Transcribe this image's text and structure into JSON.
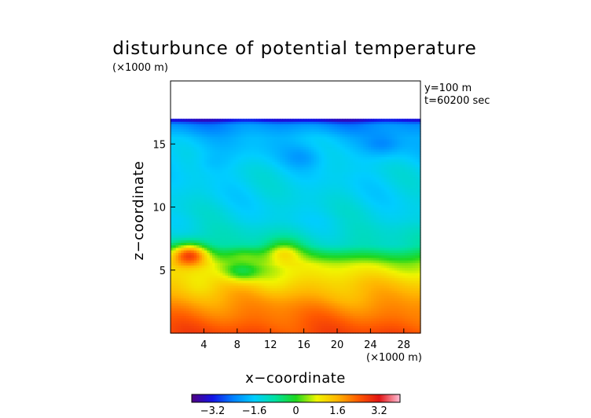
{
  "chart_data": {
    "type": "heatmap",
    "title": "disturbunce of potential temperature",
    "y_unit_label": "(×1000 m)",
    "x_unit_label": "(×1000 m)",
    "xlabel": "x−coordinate",
    "ylabel": "z−coordinate",
    "annotations": [
      "y=100 m",
      "t=60200 sec"
    ],
    "xlim": [
      0,
      30
    ],
    "ylim": [
      0,
      20
    ],
    "x_ticks": [
      {
        "value": 4,
        "label": "4"
      },
      {
        "value": 8,
        "label": "8"
      },
      {
        "value": 12,
        "label": "12"
      },
      {
        "value": 16,
        "label": "16"
      },
      {
        "value": 20,
        "label": "20"
      },
      {
        "value": 24,
        "label": "24"
      },
      {
        "value": 28,
        "label": "28"
      }
    ],
    "y_ticks": [
      {
        "value": 5,
        "label": "5"
      },
      {
        "value": 10,
        "label": "10"
      },
      {
        "value": 15,
        "label": "15"
      }
    ],
    "colorbar": {
      "min": -4,
      "max": 4,
      "ticks": [
        {
          "value": -3.2,
          "label": "−3.2"
        },
        {
          "value": -1.6,
          "label": "−1.6"
        },
        {
          "value": 0,
          "label": "0"
        },
        {
          "value": 1.6,
          "label": "1.6"
        },
        {
          "value": 3.2,
          "label": "3.2"
        }
      ]
    },
    "field_top_z": 17,
    "background_profile": [
      {
        "z": 0.0,
        "value": 2.6
      },
      {
        "z": 2.0,
        "value": 2.0
      },
      {
        "z": 4.0,
        "value": 1.3
      },
      {
        "z": 5.5,
        "value": 0.6
      },
      {
        "z": 7.0,
        "value": -1.0
      },
      {
        "z": 9.0,
        "value": -1.4
      },
      {
        "z": 13.0,
        "value": -1.5
      },
      {
        "z": 15.5,
        "value": -1.8
      },
      {
        "z": 16.6,
        "value": -2.3
      },
      {
        "z": 17.0,
        "value": -3.6
      }
    ],
    "anomalies": [
      {
        "x": 2.3,
        "z": 6.3,
        "value": 2.7
      },
      {
        "x": 9.0,
        "z": 6.0,
        "value": 0.8
      },
      {
        "x": 13.5,
        "z": 6.5,
        "value": 0.8
      },
      {
        "x": 3.5,
        "z": 3.8,
        "value": 1.1
      },
      {
        "x": 12.0,
        "z": 3.9,
        "value": 1.1
      },
      {
        "x": 22.0,
        "z": 4.6,
        "value": 1.0
      },
      {
        "x": 8.5,
        "z": 5.0,
        "value": -0.5
      },
      {
        "x": 25.5,
        "z": 15.0,
        "value": -2.3
      },
      {
        "x": 16.0,
        "z": 14.0,
        "value": -2.0
      },
      {
        "x": 5.0,
        "z": 13.5,
        "value": -1.8
      }
    ]
  }
}
